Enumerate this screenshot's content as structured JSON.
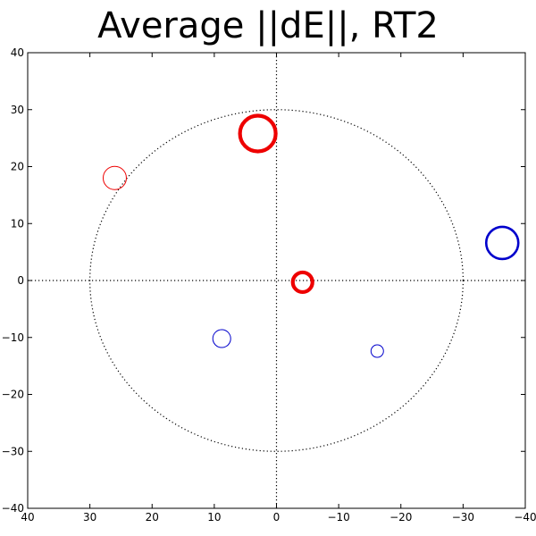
{
  "chart_data": {
    "type": "scatter",
    "title": "Average ||dE||, RT2",
    "xlabel": "",
    "ylabel": "",
    "xlim": [
      40,
      -40
    ],
    "ylim": [
      -40,
      40
    ],
    "x_ticks": [
      40,
      30,
      20,
      10,
      0,
      -10,
      -20,
      -30,
      -40
    ],
    "y_ticks": [
      40,
      30,
      20,
      10,
      0,
      -10,
      -20,
      -30,
      -40
    ],
    "x_tick_labels": [
      "40",
      "30",
      "20",
      "10",
      "0",
      "−10",
      "−20",
      "−30",
      "−40"
    ],
    "y_tick_labels": [
      "40",
      "30",
      "20",
      "10",
      "0",
      "−10",
      "−20",
      "−30",
      "−40"
    ],
    "grid": false,
    "reference_circle_radius": 30,
    "reference_lines": [
      0
    ],
    "colors": {
      "positive": "#ee0000",
      "negative": "#0000cc",
      "reference": "#000000"
    },
    "points": [
      {
        "x": 26,
        "y": 18,
        "color": "positive",
        "magnitude": 1
      },
      {
        "x": 3,
        "y": 25.8,
        "color": "positive",
        "magnitude": 3
      },
      {
        "x": -4.2,
        "y": -0.3,
        "color": "positive",
        "magnitude": 3
      },
      {
        "x": 8.8,
        "y": -10.2,
        "color": "negative",
        "magnitude": 1
      },
      {
        "x": -16.2,
        "y": -12.4,
        "color": "negative",
        "magnitude": 1
      },
      {
        "x": -36.3,
        "y": 6.6,
        "color": "negative",
        "magnitude": 2
      }
    ]
  }
}
